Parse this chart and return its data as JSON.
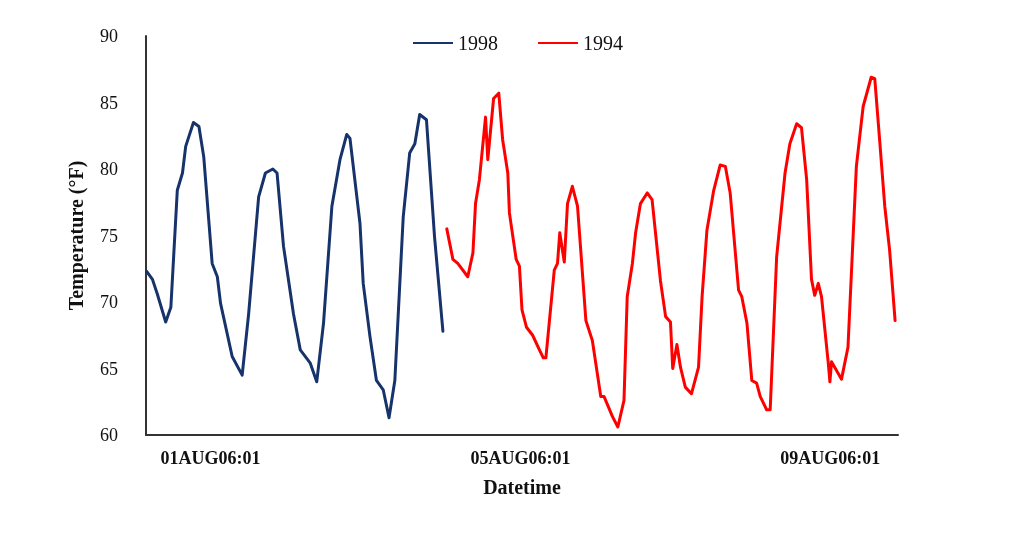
{
  "chart_data": {
    "type": "line",
    "xlabel": "Datetime",
    "ylabel": "Temperature (°F)",
    "xlim": [
      "--07-31T10:00",
      "--08-10T03:00"
    ],
    "xticks": [
      {
        "value": "--08-01T06:01",
        "label": "01AUG06:01"
      },
      {
        "value": "--08-05T06:01",
        "label": "05AUG06:01"
      },
      {
        "value": "--08-09T06:01",
        "label": "09AUG06:01"
      }
    ],
    "ylim": [
      60,
      90
    ],
    "yticks": [
      60,
      65,
      70,
      75,
      80,
      85,
      90
    ],
    "grid": false,
    "legend": "top",
    "marker": "none",
    "line_style": "solid",
    "series": [
      {
        "name": "1998",
        "color": "#17336b",
        "x": [
          "--07-31T10:12",
          "--07-31T12:00",
          "--07-31T13:30",
          "--07-31T16:06",
          "--07-31T17:42",
          "--07-31T19:42",
          "--07-31T21:18",
          "--07-31T22:18",
          "--08-01T00:42",
          "--08-01T02:24",
          "--08-01T03:54",
          "--08-01T06:30",
          "--08-01T08:06",
          "--08-01T09:06",
          "--08-01T12:42",
          "--08-01T15:48",
          "--08-01T17:48",
          "--08-01T20:54",
          "--08-01T23:00",
          "--08-02T01:18",
          "--08-02T02:36",
          "--08-02T04:36",
          "--08-02T07:42",
          "--08-02T09:48",
          "--08-02T12:54",
          "--08-02T14:54",
          "--08-02T17:00",
          "--08-02T19:36",
          "--08-02T22:06",
          "--08-03T00:12",
          "--08-03T01:12",
          "--08-03T04:18",
          "--08-03T05:18",
          "--08-03T07:24",
          "--08-03T09:24",
          "--08-03T11:30",
          "--08-03T13:18",
          "--08-03T15:06",
          "--08-03T17:42",
          "--08-03T19:42",
          "--08-03T21:18",
          "--08-03T22:48",
          "--08-04T00:54",
          "--08-04T03:24",
          "--08-04T06:00"
        ],
        "values": [
          72.3,
          71.7,
          70.6,
          68.5,
          69.6,
          78.4,
          79.7,
          81.7,
          83.5,
          83.2,
          80.9,
          72.9,
          71.9,
          69.9,
          65.9,
          64.5,
          69.1,
          77.9,
          79.7,
          80.0,
          79.7,
          74.2,
          69.1,
          66.4,
          65.4,
          64.0,
          68.4,
          77.2,
          80.7,
          82.6,
          82.3,
          75.9,
          71.4,
          67.4,
          64.1,
          63.4,
          61.3,
          64.1,
          76.4,
          81.2,
          81.9,
          84.1,
          83.7,
          74.9,
          67.8
        ]
      },
      {
        "name": "1994",
        "color": "#ff0000",
        "x": [
          "--08-04T07:12",
          "--08-04T09:06",
          "--08-04T10:36",
          "--08-04T13:42",
          "--08-04T15:18",
          "--08-04T16:06",
          "--08-04T17:18",
          "--08-04T19:12",
          "--08-04T19:54",
          "--08-04T21:42",
          "--08-04T23:18",
          "--08-05T00:30",
          "--08-05T02:06",
          "--08-05T02:36",
          "--08-05T04:42",
          "--08-05T05:42",
          "--08-05T06:30",
          "--08-05T07:54",
          "--08-05T09:48",
          "--08-05T11:54",
          "--08-05T13:06",
          "--08-05T13:54",
          "--08-05T16:30",
          "--08-05T17:30",
          "--08-05T18:12",
          "--08-05T19:36",
          "--08-05T20:36",
          "--08-05T22:06",
          "--08-05T23:42",
          "--08-06T02:18",
          "--08-06T04:18",
          "--08-06T06:54",
          "--08-06T07:54",
          "--08-06T10:30",
          "--08-06T12:12",
          "--08-06T14:06",
          "--08-06T15:06",
          "--08-06T16:42",
          "--08-06T17:42",
          "--08-06T19:12",
          "--08-06T21:18",
          "--08-06T22:48",
          "--08-07T01:24",
          "--08-07T03:00",
          "--08-07T04:30",
          "--08-07T05:12",
          "--08-07T06:30",
          "--08-07T07:36",
          "--08-07T09:06",
          "--08-07T11:00",
          "--08-07T13:12",
          "--08-07T14:18",
          "--08-07T15:48",
          "--08-07T17:54",
          "--08-07T19:54",
          "--08-07T21:30",
          "--08-07T23:00",
          "--08-08T01:36",
          "--08-08T02:36",
          "--08-08T03:24",
          "--08-08T04:12",
          "--08-08T05:42",
          "--08-08T07:12",
          "--08-08T08:18",
          "--08-08T10:18",
          "--08-08T11:24",
          "--08-08T13:24",
          "--08-08T16:00",
          "--08-08T17:30",
          "--08-08T19:36",
          "--08-08T21:06",
          "--08-08T22:42",
          "--08-09T00:12",
          "--08-09T01:12",
          "--08-09T02:18",
          "--08-09T03:18",
          "--08-09T05:24",
          "--08-09T05:54",
          "--08-09T06:24",
          "--08-09T09:30",
          "--08-09T11:30",
          "--08-09T14:06",
          "--08-09T16:12",
          "--08-09T18:42",
          "--08-09T19:48",
          "--08-09T21:18",
          "--08-09T22:54",
          "--08-10T00:24",
          "--08-10T02:06"
        ],
        "values": [
          75.5,
          73.2,
          72.9,
          71.9,
          73.7,
          77.4,
          79.2,
          83.9,
          80.7,
          85.3,
          85.7,
          82.2,
          79.7,
          76.7,
          73.2,
          72.7,
          69.4,
          68.1,
          67.5,
          66.4,
          65.8,
          65.8,
          72.4,
          72.9,
          75.2,
          73.0,
          77.4,
          78.7,
          77.2,
          68.6,
          67.1,
          62.9,
          62.9,
          61.4,
          60.6,
          62.6,
          70.4,
          72.9,
          75.2,
          77.4,
          78.2,
          77.7,
          71.6,
          68.9,
          68.5,
          65.0,
          66.8,
          65.1,
          63.6,
          63.1,
          65.1,
          70.4,
          75.4,
          78.4,
          80.3,
          80.2,
          78.2,
          70.9,
          70.4,
          69.4,
          68.4,
          64.1,
          63.9,
          62.9,
          61.9,
          61.9,
          73.4,
          79.7,
          81.9,
          83.4,
          83.1,
          79.2,
          71.7,
          70.5,
          71.4,
          70.4,
          65.4,
          64.0,
          65.5,
          64.2,
          66.6,
          80.2,
          84.7,
          86.9,
          86.8,
          82.2,
          77.2,
          73.9,
          68.6
        ]
      }
    ]
  }
}
